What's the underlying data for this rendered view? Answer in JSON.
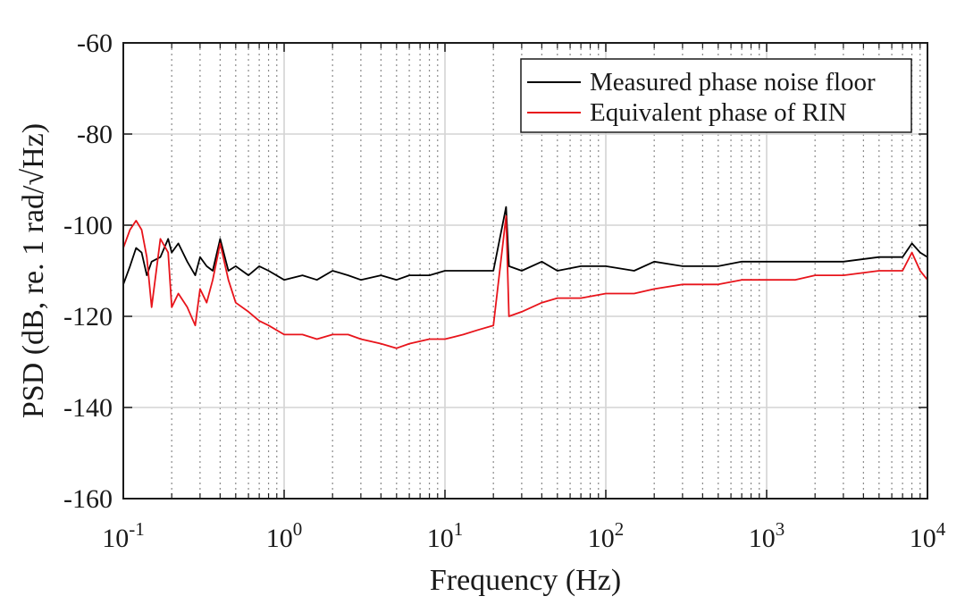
{
  "chart_data": {
    "type": "line",
    "title": "",
    "xlabel": "Frequency (Hz)",
    "ylabel": "PSD (dB, re. 1 rad/√Hz)",
    "xscale": "log",
    "xlim": [
      0.1,
      10000
    ],
    "ylim": [
      -160,
      -60
    ],
    "grid": true,
    "legend_position": "top-right",
    "x_ticks": [
      {
        "value": 0.1,
        "base": "10",
        "exp": "-1"
      },
      {
        "value": 1,
        "base": "10",
        "exp": "0"
      },
      {
        "value": 10,
        "base": "10",
        "exp": "1"
      },
      {
        "value": 100,
        "base": "10",
        "exp": "2"
      },
      {
        "value": 1000,
        "base": "10",
        "exp": "3"
      },
      {
        "value": 10000,
        "base": "10",
        "exp": "4"
      }
    ],
    "y_ticks": [
      {
        "value": -60,
        "label": "-60"
      },
      {
        "value": -80,
        "label": "-80"
      },
      {
        "value": -100,
        "label": "-100"
      },
      {
        "value": -120,
        "label": "-120"
      },
      {
        "value": -140,
        "label": "-140"
      },
      {
        "value": -160,
        "label": "-160"
      }
    ],
    "series": [
      {
        "name": "Measured phase noise floor",
        "color": "#000000",
        "x": [
          0.1,
          0.11,
          0.12,
          0.13,
          0.14,
          0.15,
          0.17,
          0.19,
          0.2,
          0.22,
          0.25,
          0.28,
          0.3,
          0.33,
          0.36,
          0.4,
          0.45,
          0.5,
          0.6,
          0.7,
          0.8,
          1,
          1.3,
          1.6,
          2,
          2.5,
          3,
          4,
          5,
          6,
          8,
          10,
          13,
          16,
          20,
          24,
          25,
          30,
          40,
          50,
          70,
          100,
          150,
          200,
          300,
          500,
          700,
          1000,
          1500,
          2000,
          3000,
          5000,
          7000,
          8000,
          9000,
          10000
        ],
        "y": [
          -113,
          -109,
          -105,
          -106,
          -111,
          -108,
          -107,
          -103,
          -106,
          -104,
          -108,
          -111,
          -107,
          -109,
          -110,
          -103,
          -110,
          -109,
          -111,
          -109,
          -110,
          -112,
          -111,
          -112,
          -110,
          -111,
          -112,
          -111,
          -112,
          -111,
          -111,
          -110,
          -110,
          -110,
          -110,
          -96,
          -109,
          -110,
          -108,
          -110,
          -109,
          -109,
          -110,
          -108,
          -109,
          -109,
          -108,
          -108,
          -108,
          -108,
          -108,
          -107,
          -107,
          -104,
          -106,
          -107
        ]
      },
      {
        "name": "Equivalent phase of RIN",
        "color": "#e8141b",
        "x": [
          0.1,
          0.11,
          0.12,
          0.13,
          0.14,
          0.15,
          0.17,
          0.19,
          0.2,
          0.22,
          0.25,
          0.28,
          0.3,
          0.33,
          0.36,
          0.4,
          0.45,
          0.5,
          0.6,
          0.7,
          0.8,
          1,
          1.3,
          1.6,
          2,
          2.5,
          3,
          4,
          5,
          6,
          8,
          10,
          13,
          16,
          20,
          24,
          25,
          30,
          40,
          50,
          70,
          100,
          150,
          200,
          300,
          500,
          700,
          1000,
          1500,
          2000,
          3000,
          5000,
          7000,
          8000,
          9000,
          10000
        ],
        "y": [
          -105,
          -101,
          -99,
          -101,
          -107,
          -118,
          -103,
          -106,
          -118,
          -115,
          -118,
          -122,
          -114,
          -117,
          -112,
          -104,
          -112,
          -117,
          -119,
          -121,
          -122,
          -124,
          -124,
          -125,
          -124,
          -124,
          -125,
          -126,
          -127,
          -126,
          -125,
          -125,
          -124,
          -123,
          -122,
          -98,
          -120,
          -119,
          -117,
          -116,
          -116,
          -115,
          -115,
          -114,
          -113,
          -113,
          -112,
          -112,
          -112,
          -111,
          -111,
          -110,
          -110,
          -106,
          -110,
          -112
        ]
      }
    ]
  }
}
